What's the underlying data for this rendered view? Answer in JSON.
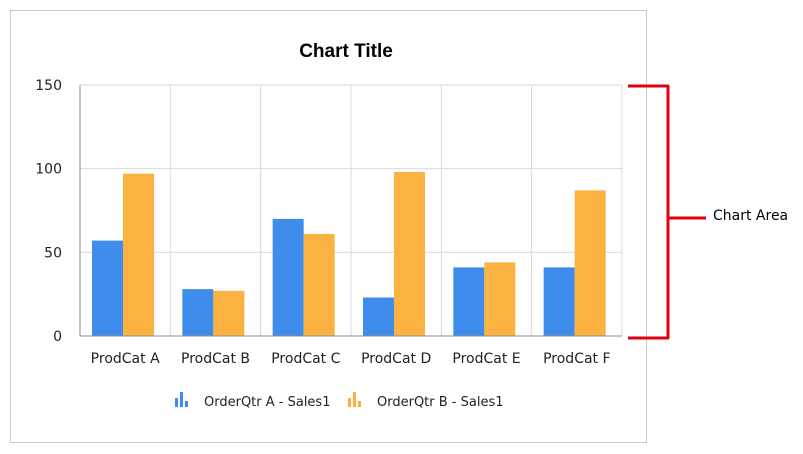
{
  "chart_data": {
    "type": "bar",
    "title": "Chart Title",
    "xlabel": "",
    "ylabel": "",
    "categories": [
      "ProdCat A",
      "ProdCat B",
      "ProdCat C",
      "ProdCat D",
      "ProdCat E",
      "ProdCat F"
    ],
    "series": [
      {
        "name": "OrderQtr A - Sales1",
        "color": "#3e8ded",
        "values": [
          57,
          28,
          70,
          23,
          41,
          41
        ]
      },
      {
        "name": "OrderQtr B - Sales1",
        "color": "#fbb240",
        "values": [
          97,
          27,
          61,
          98,
          44,
          87
        ]
      }
    ],
    "ylim": [
      0,
      150
    ],
    "yticks": [
      0,
      50,
      100,
      150
    ],
    "grid": true,
    "legend_position": "bottom"
  },
  "annotation": {
    "label": "Chart Area",
    "color": "#e0000f"
  },
  "colors": {
    "gridline": "#d9d9d9",
    "axis": "#8c8c8c",
    "frame": "#c8c8c8"
  }
}
